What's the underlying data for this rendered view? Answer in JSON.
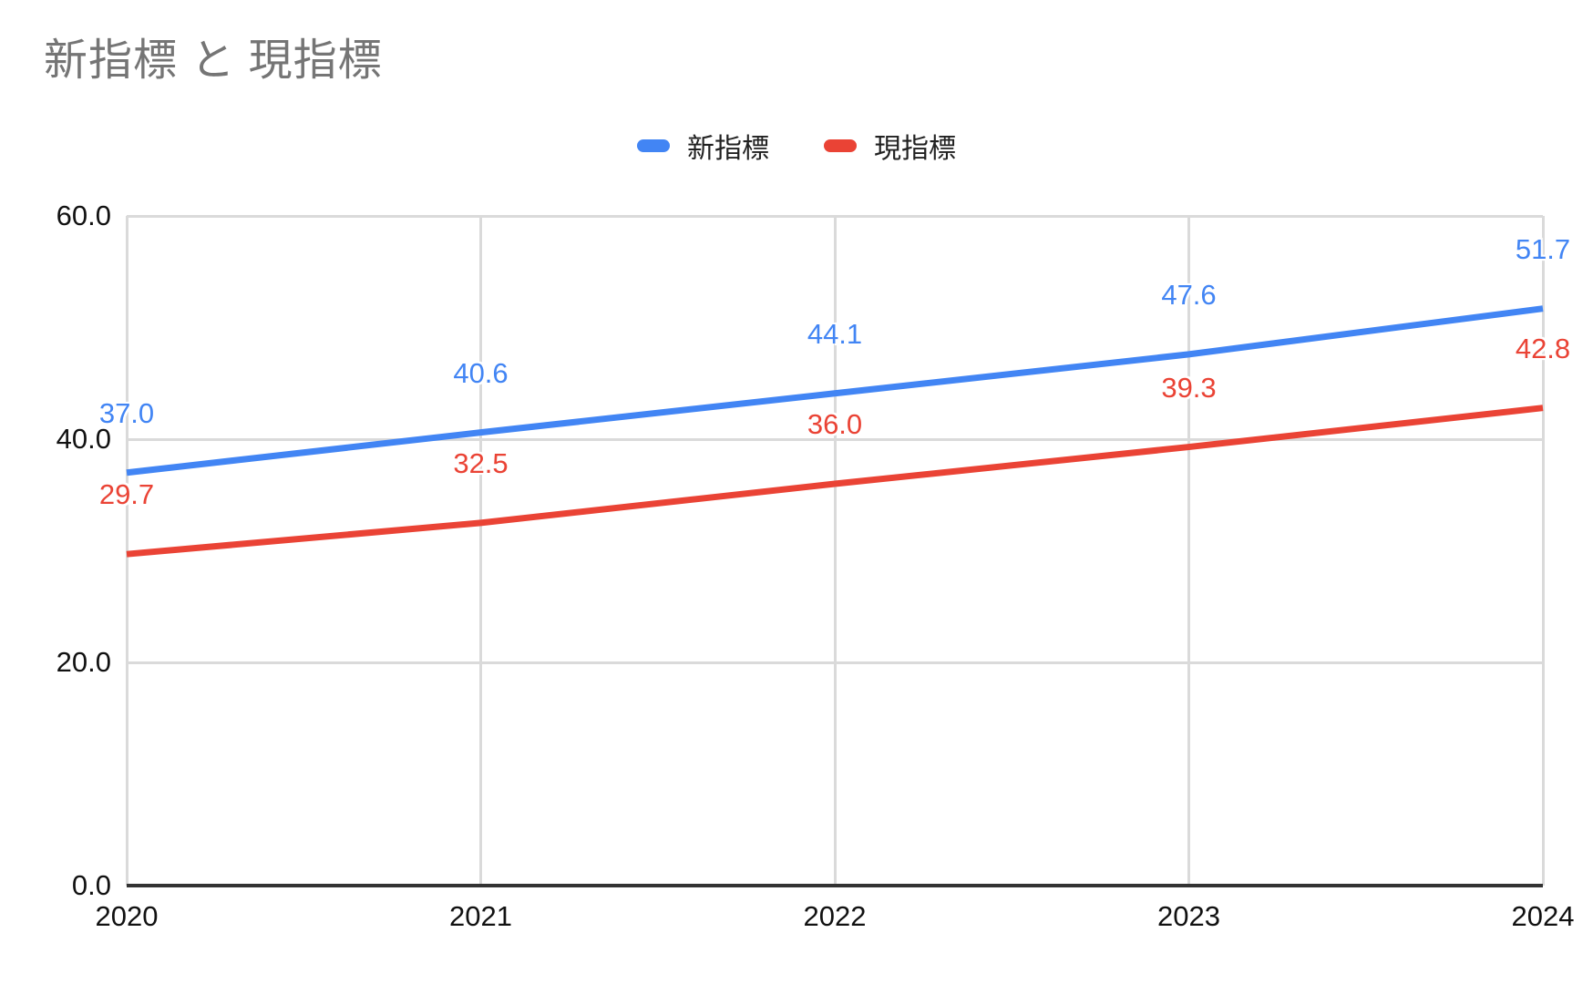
{
  "title": "新指標 と 現指標",
  "styles": {
    "title_color": "#757575",
    "axis_text_color": "#111111",
    "legend_text_color": "#212121",
    "grid_color": "#dadada",
    "axis_line_color": "#333333",
    "background": "#ffffff",
    "series_blue": "#4285F4",
    "series_red": "#EA4335"
  },
  "chart_data": {
    "type": "line",
    "title": "新指標 と 現指標",
    "categories": [
      "2020",
      "2021",
      "2022",
      "2023",
      "2024"
    ],
    "series": [
      {
        "name": "新指標",
        "color": "#4285F4",
        "values": [
          37.0,
          40.6,
          44.1,
          47.6,
          51.7
        ]
      },
      {
        "name": "現指標",
        "color": "#EA4335",
        "values": [
          29.7,
          32.5,
          36.0,
          39.3,
          42.8
        ]
      }
    ],
    "ylim": [
      0,
      60
    ],
    "yticks": [
      {
        "value": 0,
        "label": "0.0"
      },
      {
        "value": 20,
        "label": "20.0"
      },
      {
        "value": 40,
        "label": "40.0"
      },
      {
        "value": 60,
        "label": "60.0"
      }
    ],
    "grid": true,
    "data_labels": true,
    "legend_position": "top",
    "xlabel": "",
    "ylabel": ""
  }
}
